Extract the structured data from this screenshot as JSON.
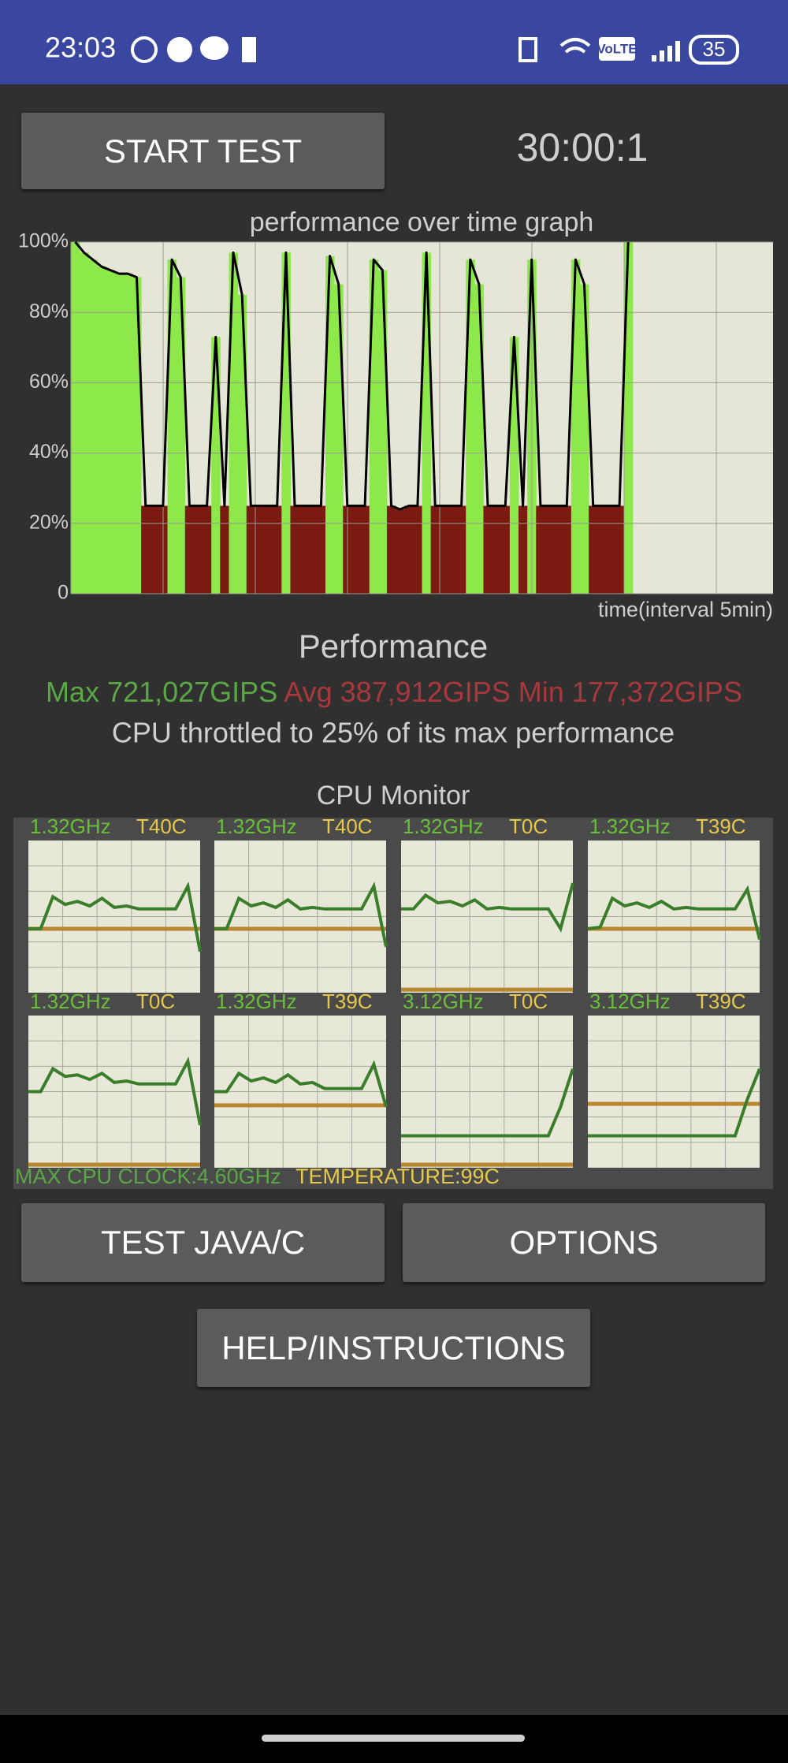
{
  "status_bar": {
    "time": "23:03",
    "network": "VoLTE",
    "battery": "35"
  },
  "start_button": "START TEST",
  "timer": "30:00:1",
  "chart_data": {
    "type": "area",
    "title": "performance over time graph",
    "x_label": "time(interval 5min)",
    "values": [
      100,
      97,
      95,
      93,
      92,
      91,
      91,
      90,
      25,
      25,
      25,
      95,
      90,
      25,
      25,
      25,
      73,
      25,
      97,
      85,
      25,
      25,
      25,
      25,
      97,
      25,
      25,
      25,
      25,
      96,
      88,
      25,
      25,
      25,
      95,
      92,
      25,
      24,
      25,
      25,
      97,
      25,
      25,
      25,
      25,
      95,
      88,
      25,
      25,
      25,
      73,
      25,
      95,
      25,
      25,
      25,
      25,
      95,
      88,
      25,
      25,
      25,
      25,
      100,
      null,
      null,
      null,
      null,
      null,
      null,
      null,
      null,
      null,
      null,
      null,
      null,
      null,
      null,
      null,
      null
    ],
    "ylim": [
      0,
      100
    ],
    "yticks": [
      {
        "value": 100,
        "label": "100%"
      },
      {
        "value": 80,
        "label": "80%"
      },
      {
        "value": 60,
        "label": "60%"
      },
      {
        "value": 40,
        "label": "40%"
      },
      {
        "value": 20,
        "label": "20%"
      },
      0
    ],
    "grid": true,
    "color": "#000000",
    "high_color": "#8de84a",
    "low_color": "#7a1a10"
  },
  "performance": {
    "title": "Performance",
    "max": "Max 721,027GIPS",
    "avg": "Avg 387,912GIPS",
    "min": "Min 177,372GIPS",
    "note": "CPU throttled to 25% of its max performance"
  },
  "cpu_monitor": {
    "title": "CPU Monitor",
    "ylim": [
      0,
      100
    ],
    "cores": [
      {
        "freq": "1.32GHz",
        "temp": "T40C",
        "load": [
          42,
          42,
          63,
          58,
          60,
          57,
          62,
          56,
          57,
          55,
          55,
          55,
          55,
          70,
          27
        ],
        "temp_level": 42
      },
      {
        "freq": "1.32GHz",
        "temp": "T40C",
        "load": [
          42,
          42,
          62,
          57,
          59,
          56,
          61,
          55,
          56,
          55,
          55,
          55,
          55,
          70,
          30
        ],
        "temp_level": 42
      },
      {
        "freq": "1.32GHz",
        "temp": "T0C",
        "load": [
          55,
          55,
          64,
          59,
          60,
          57,
          61,
          55,
          56,
          55,
          55,
          55,
          55,
          42,
          72
        ],
        "temp_level": 2
      },
      {
        "freq": "1.32GHz",
        "temp": "T39C",
        "load": [
          42,
          43,
          62,
          57,
          59,
          56,
          60,
          55,
          56,
          55,
          55,
          55,
          55,
          68,
          35
        ],
        "temp_level": 42
      },
      {
        "freq": "1.32GHz",
        "temp": "T0C",
        "load": [
          50,
          50,
          65,
          60,
          61,
          58,
          62,
          56,
          57,
          55,
          55,
          55,
          55,
          70,
          28
        ],
        "temp_level": 2
      },
      {
        "freq": "1.32GHz",
        "temp": "T39C",
        "load": [
          50,
          50,
          62,
          57,
          59,
          56,
          61,
          55,
          56,
          52,
          52,
          52,
          52,
          68,
          40
        ],
        "temp_level": 41
      },
      {
        "freq": "3.12GHz",
        "temp": "T0C",
        "load": [
          21,
          21,
          21,
          21,
          21,
          21,
          21,
          21,
          21,
          21,
          21,
          21,
          21,
          40,
          65
        ],
        "temp_level": 2
      },
      {
        "freq": "3.12GHz",
        "temp": "T39C",
        "load": [
          21,
          21,
          21,
          21,
          21,
          21,
          21,
          21,
          21,
          21,
          21,
          21,
          21,
          45,
          65
        ],
        "temp_level": 42
      }
    ],
    "max_clock": "MAX CPU CLOCK:4.60GHz",
    "temperature": "TEMPERATURE:99C"
  },
  "buttons": {
    "test": "TEST JAVA/C",
    "options": "OPTIONS",
    "help": "HELP/INSTRUCTIONS"
  }
}
